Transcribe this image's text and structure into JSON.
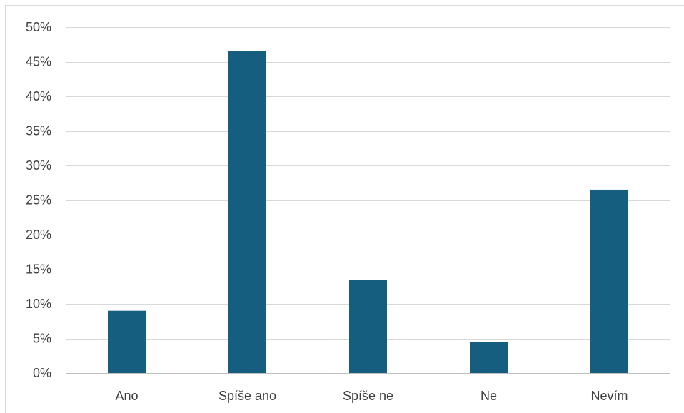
{
  "chart_data": {
    "type": "bar",
    "title": "",
    "xlabel": "",
    "ylabel": "",
    "categories": [
      "Ano",
      "Spíše ano",
      "Spíše ne",
      "Ne",
      "Nevím"
    ],
    "values": [
      9,
      46.5,
      13.5,
      4.5,
      26.5
    ],
    "value_unit": "%",
    "ylim": [
      0,
      50
    ],
    "yticks": [
      0,
      5,
      10,
      15,
      20,
      25,
      30,
      35,
      40,
      45,
      50
    ],
    "ytick_labels": [
      "0%",
      "5%",
      "10%",
      "15%",
      "20%",
      "25%",
      "30%",
      "35%",
      "40%",
      "45%",
      "50%"
    ],
    "grid": true,
    "legend": "none",
    "colors": {
      "bar": "#165e80",
      "gridline": "#d9d9d9",
      "axis": "#bfbfbf",
      "label": "#404040"
    }
  }
}
